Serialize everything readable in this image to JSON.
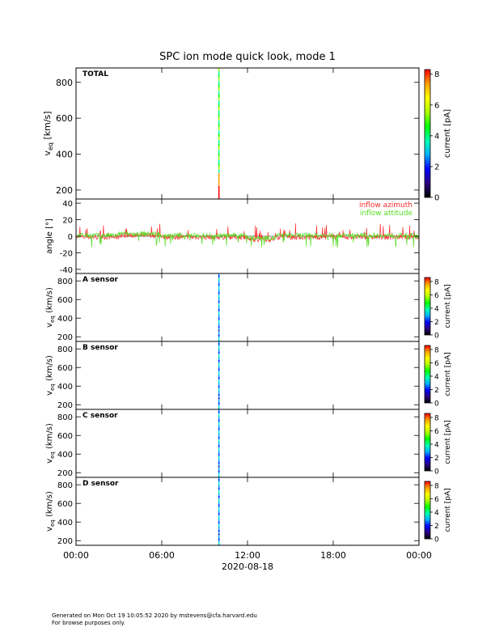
{
  "title": "SPC ion mode quick look, mode 1",
  "date_label": "2020-08-18",
  "footer": {
    "line1": "Generated on Mon Oct 19 10:05:52 2020 by mstevens@cfa.harvard.edu",
    "line2": "For browse purposes only."
  },
  "colors": {
    "azimuth": "#ff2a2a",
    "attitude": "#55dd22",
    "colorbar": [
      "#000000",
      "#2a0080",
      "#0000ff",
      "#00b0ff",
      "#00ffb0",
      "#00ff00",
      "#b0ff00",
      "#ffff00",
      "#ffa000",
      "#ff0000"
    ]
  },
  "chart_data": [
    {
      "type": "heatmap",
      "label": "TOTAL",
      "ylabel": "v",
      "ylabel_sub": "eq",
      "ylabel_unit": "[km/s]",
      "ylim": [
        150,
        880
      ],
      "yticks": [
        200,
        400,
        600,
        800
      ],
      "xlim": [
        0,
        24
      ],
      "xticks": [
        "00:00",
        "06:00",
        "12:00",
        "18:00",
        "00:00"
      ],
      "xtick_hours": [
        0,
        6,
        12,
        18,
        24
      ],
      "burst_hour": 10.0,
      "colorbar_label": "current [pA]",
      "colorbar_ticks": [
        0,
        2,
        4,
        6,
        8
      ],
      "colorbar_lim": [
        0,
        8.3
      ]
    },
    {
      "type": "line",
      "ylabel": "angle [°]",
      "ylim": [
        -45,
        45
      ],
      "yticks": [
        -40,
        -20,
        0,
        20,
        40
      ],
      "xlim": [
        0,
        24
      ],
      "series": [
        {
          "name": "inflow azimuth",
          "color": "#ff2a2a"
        },
        {
          "name": "inflow attitude",
          "color": "#55dd22"
        }
      ],
      "legend": "top-right"
    },
    {
      "type": "heatmap",
      "label": "A sensor",
      "ylabel": "v",
      "ylabel_sub": "eq",
      "ylabel_unit": "(km/s)",
      "ylim": [
        150,
        880
      ],
      "yticks": [
        200,
        400,
        600,
        800
      ],
      "xlim": [
        0,
        24
      ],
      "burst_hour": 10.0,
      "colorbar_label": "current [pA]",
      "colorbar_ticks": [
        0,
        2,
        4,
        6,
        8
      ],
      "colorbar_lim": [
        0,
        8.6
      ]
    },
    {
      "type": "heatmap",
      "label": "B sensor",
      "ylabel": "v",
      "ylabel_sub": "eq",
      "ylabel_unit": "(km/s)",
      "ylim": [
        150,
        880
      ],
      "yticks": [
        200,
        400,
        600,
        800
      ],
      "xlim": [
        0,
        24
      ],
      "burst_hour": 10.0,
      "colorbar_label": "current [pA]",
      "colorbar_ticks": [
        0,
        2,
        4,
        6,
        8
      ],
      "colorbar_lim": [
        0,
        8.6
      ]
    },
    {
      "type": "heatmap",
      "label": "C sensor",
      "ylabel": "v",
      "ylabel_sub": "eq",
      "ylabel_unit": "(km/s)",
      "ylim": [
        150,
        880
      ],
      "yticks": [
        200,
        400,
        600,
        800
      ],
      "xlim": [
        0,
        24
      ],
      "burst_hour": 10.0,
      "colorbar_label": "current [pA]",
      "colorbar_ticks": [
        0,
        2,
        4,
        6,
        8
      ],
      "colorbar_lim": [
        0,
        8.6
      ]
    },
    {
      "type": "heatmap",
      "label": "D sensor",
      "ylabel": "v",
      "ylabel_sub": "eq",
      "ylabel_unit": "(km/s)",
      "ylim": [
        150,
        880
      ],
      "yticks": [
        200,
        400,
        600,
        800
      ],
      "xlim": [
        0,
        24
      ],
      "burst_hour": 10.0,
      "colorbar_label": "current [pA]",
      "colorbar_ticks": [
        0,
        2,
        4,
        6,
        8
      ],
      "colorbar_lim": [
        0,
        8.6
      ]
    }
  ]
}
